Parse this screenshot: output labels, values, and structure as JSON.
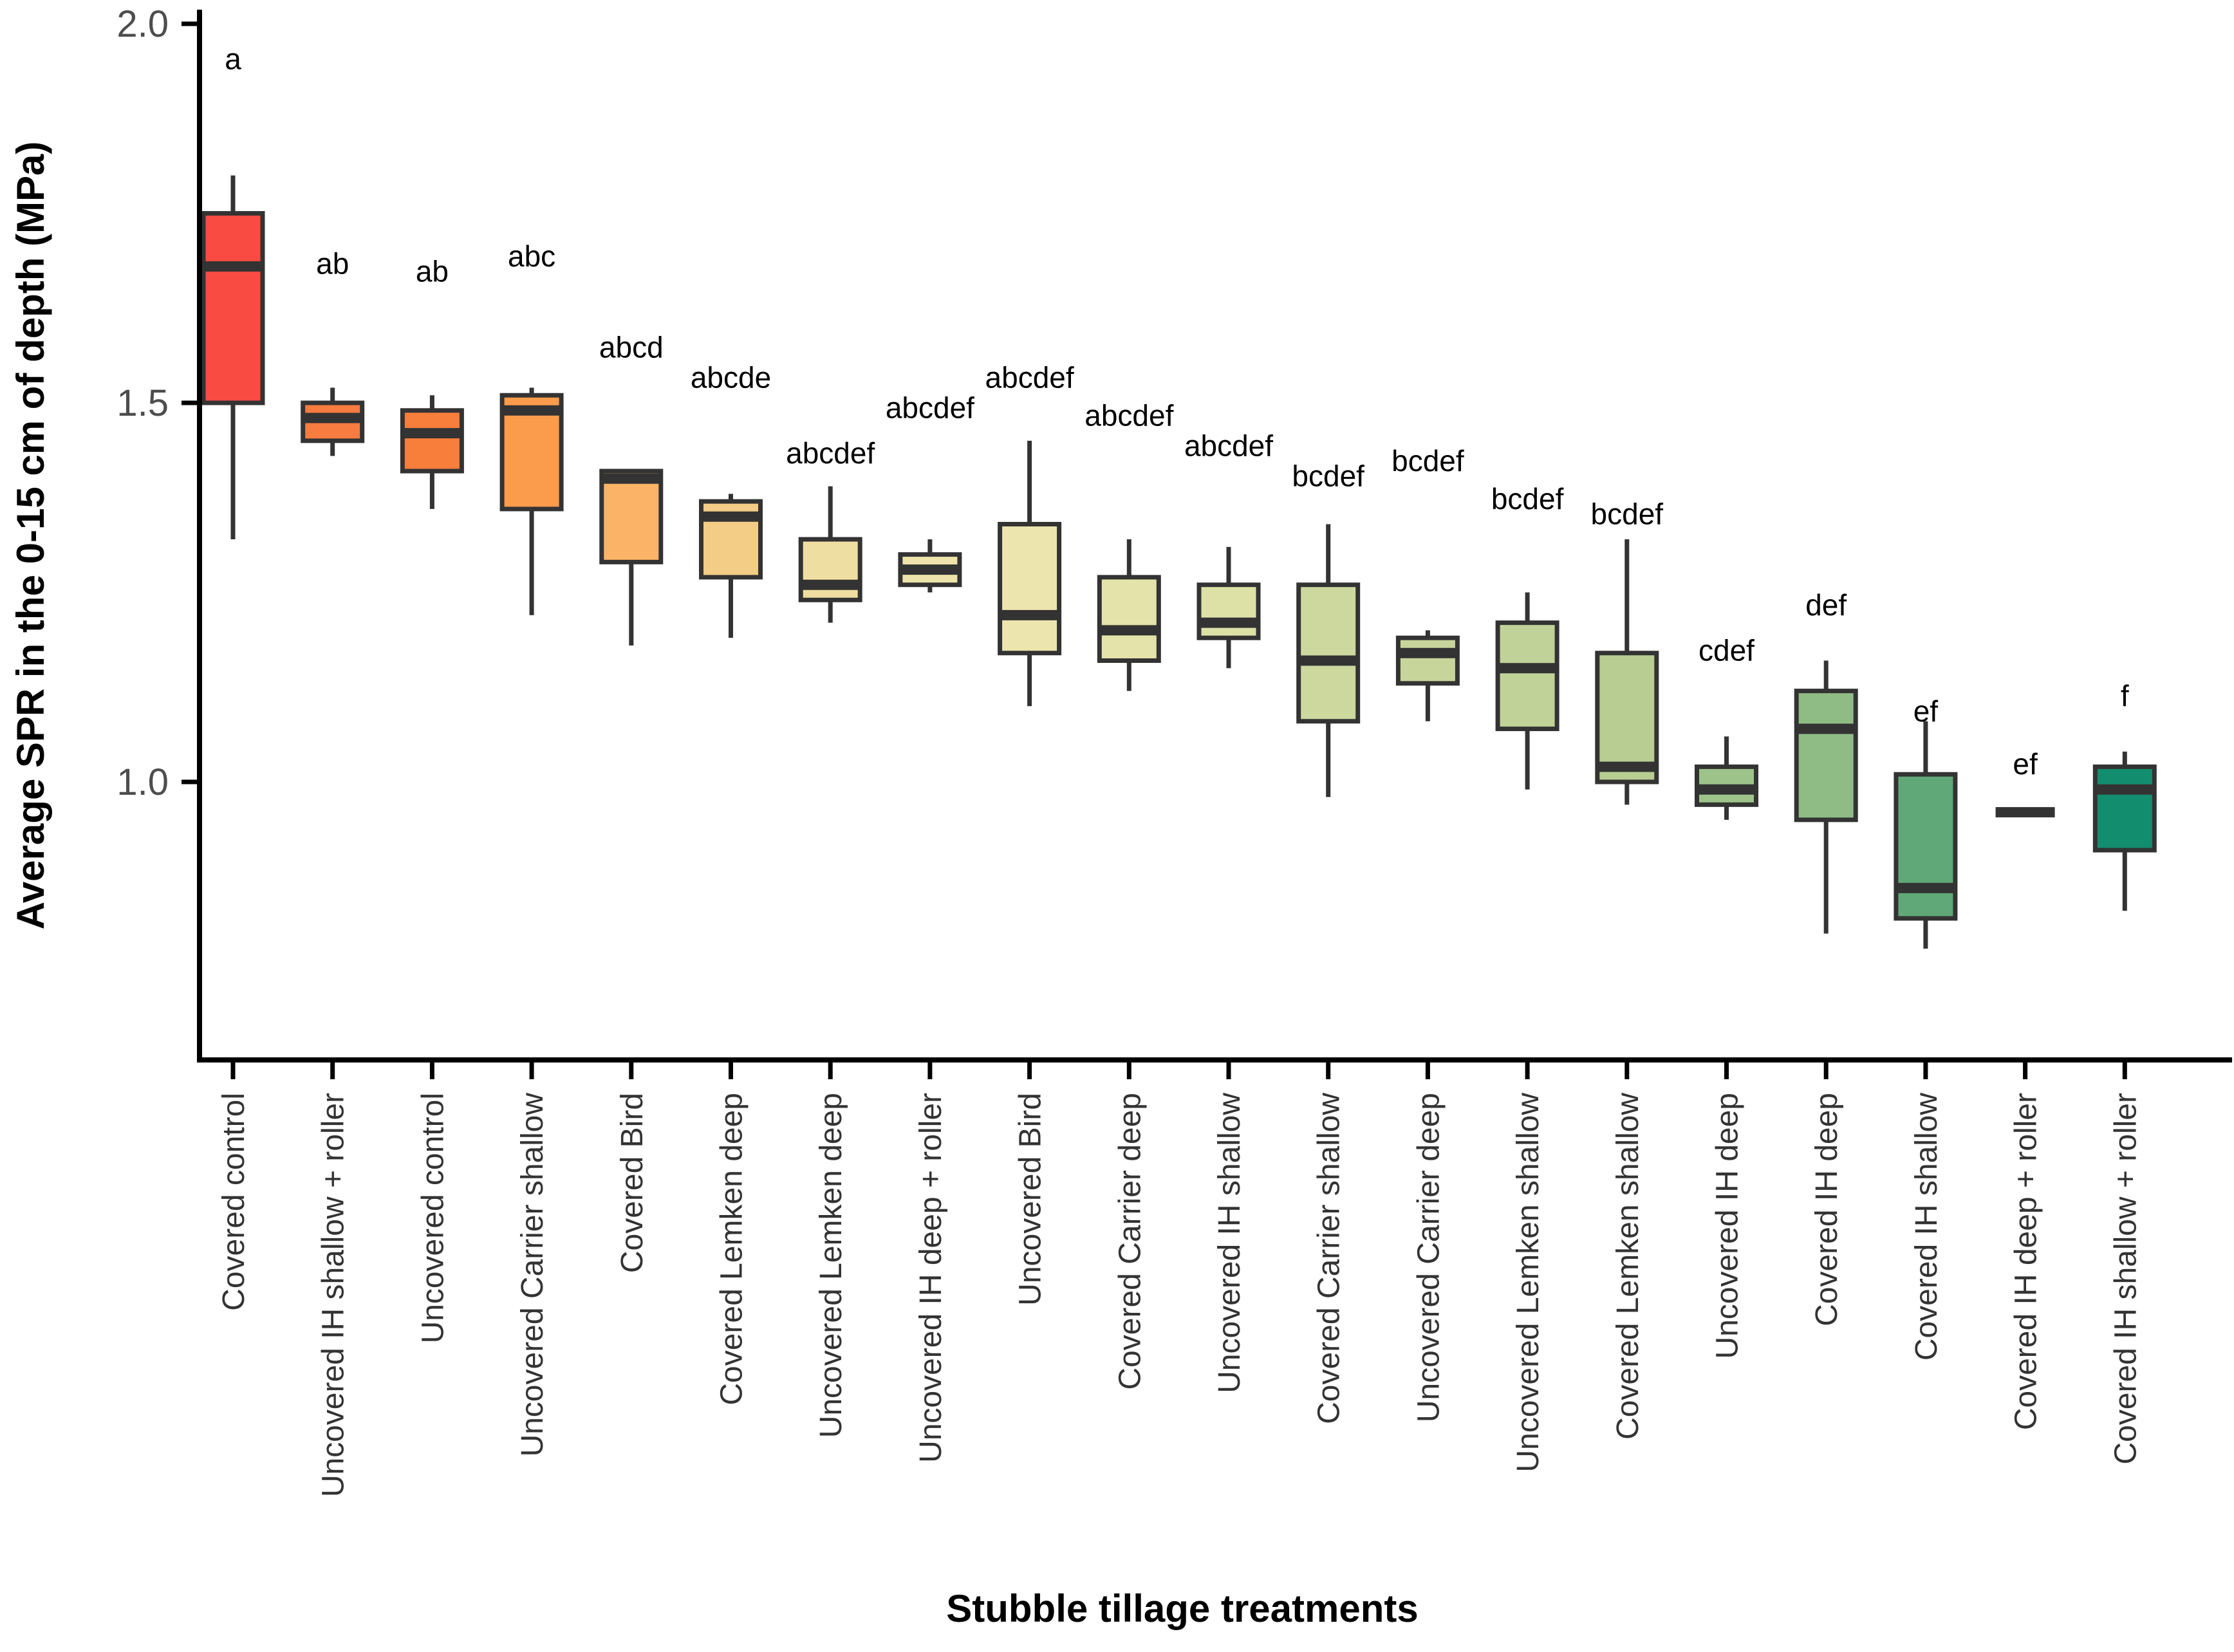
{
  "chart_data": {
    "type": "boxplot",
    "title": "",
    "xlabel": "Stubble tillage treatments",
    "ylabel": "Average SPR in the 0-15 cm of depth (MPa)",
    "y_ticks": [
      2.0,
      1.5,
      1.0
    ],
    "y_tick_labels": [
      "2.0",
      "1.5",
      "1.0"
    ],
    "ylim": [
      0.63,
      2.03
    ],
    "grid": false,
    "legend": false,
    "categories": [
      "Covered control",
      "Uncovered IH shallow + roller",
      "Uncovered control",
      "Uncovered Carrier shallow",
      "Covered Bird",
      "Covered Lemken deep",
      "Uncovered Lemken deep",
      "Uncovered IH deep + roller",
      "Uncovered Bird",
      "Covered Carrier deep",
      "Uncovered IH shallow",
      "Covered Carrier shallow",
      "Uncovered Carrier deep",
      "Uncovered Lemken shallow",
      "Covered Lemken shallow",
      "Uncovered IH deep",
      "Covered IH deep",
      "Covered IH shallow",
      "Covered IH deep + roller",
      "Covered IH shallow + roller"
    ],
    "series": [
      {
        "name": "Covered control",
        "letter": "a",
        "letter_value": 1.94,
        "min": 1.32,
        "q1": 1.5,
        "median": 1.68,
        "q3": 1.75,
        "max": 1.8,
        "color": "#FA4B42"
      },
      {
        "name": "Uncovered IH shallow + roller",
        "letter": "ab",
        "letter_value": 1.67,
        "min": 1.43,
        "q1": 1.45,
        "median": 1.48,
        "q3": 1.5,
        "max": 1.52,
        "color": "#F87B40"
      },
      {
        "name": "Uncovered control",
        "letter": "ab",
        "letter_value": 1.66,
        "min": 1.36,
        "q1": 1.41,
        "median": 1.46,
        "q3": 1.49,
        "max": 1.51,
        "color": "#F87E3C"
      },
      {
        "name": "Uncovered Carrier shallow",
        "letter": "abc",
        "letter_value": 1.68,
        "min": 1.22,
        "q1": 1.36,
        "median": 1.49,
        "q3": 1.51,
        "max": 1.52,
        "color": "#FA9C4C"
      },
      {
        "name": "Covered Bird",
        "letter": "abcd",
        "letter_value": 1.56,
        "min": 1.18,
        "q1": 1.29,
        "median": 1.4,
        "q3": 1.41,
        "max": 1.41,
        "color": "#FBB467"
      },
      {
        "name": "Covered Lemken deep",
        "letter": "abcde",
        "letter_value": 1.52,
        "min": 1.19,
        "q1": 1.27,
        "median": 1.35,
        "q3": 1.37,
        "max": 1.38,
        "color": "#F3CD86"
      },
      {
        "name": "Uncovered Lemken deep",
        "letter": "abcdef",
        "letter_value": 1.42,
        "min": 1.21,
        "q1": 1.24,
        "median": 1.26,
        "q3": 1.32,
        "max": 1.39,
        "color": "#EFDEA1"
      },
      {
        "name": "Uncovered IH deep + roller",
        "letter": "abcdef",
        "letter_value": 1.48,
        "min": 1.25,
        "q1": 1.26,
        "median": 1.28,
        "q3": 1.3,
        "max": 1.32,
        "color": "#EEE3AA"
      },
      {
        "name": "Uncovered Bird",
        "letter": "abcdef",
        "letter_value": 1.52,
        "min": 1.1,
        "q1": 1.17,
        "median": 1.22,
        "q3": 1.34,
        "max": 1.45,
        "color": "#EDE5AE"
      },
      {
        "name": "Covered Carrier deep",
        "letter": "abcdef",
        "letter_value": 1.47,
        "min": 1.12,
        "q1": 1.16,
        "median": 1.2,
        "q3": 1.27,
        "max": 1.32,
        "color": "#E4E3AA"
      },
      {
        "name": "Uncovered IH shallow",
        "letter": "abcdef",
        "letter_value": 1.43,
        "min": 1.15,
        "q1": 1.19,
        "median": 1.21,
        "q3": 1.26,
        "max": 1.31,
        "color": "#DEE1A6"
      },
      {
        "name": "Covered Carrier shallow",
        "letter": "bcdef",
        "letter_value": 1.39,
        "min": 0.98,
        "q1": 1.08,
        "median": 1.16,
        "q3": 1.26,
        "max": 1.34,
        "color": "#CDD89E"
      },
      {
        "name": "Uncovered Carrier deep",
        "letter": "bcdef",
        "letter_value": 1.41,
        "min": 1.08,
        "q1": 1.13,
        "median": 1.17,
        "q3": 1.19,
        "max": 1.2,
        "color": "#C7D59B"
      },
      {
        "name": "Uncovered Lemken shallow",
        "letter": "bcdef",
        "letter_value": 1.36,
        "min": 0.99,
        "q1": 1.07,
        "median": 1.15,
        "q3": 1.21,
        "max": 1.25,
        "color": "#C0D297"
      },
      {
        "name": "Covered Lemken shallow",
        "letter": "bcdef",
        "letter_value": 1.34,
        "min": 0.97,
        "q1": 1.0,
        "median": 1.02,
        "q3": 1.17,
        "max": 1.32,
        "color": "#B7CD92"
      },
      {
        "name": "Uncovered IH deep",
        "letter": "cdef",
        "letter_value": 1.16,
        "min": 0.95,
        "q1": 0.97,
        "median": 0.99,
        "q3": 1.02,
        "max": 1.06,
        "color": "#9DC38A"
      },
      {
        "name": "Covered IH deep",
        "letter": "def",
        "letter_value": 1.22,
        "min": 0.8,
        "q1": 0.95,
        "median": 1.07,
        "q3": 1.12,
        "max": 1.16,
        "color": "#8FBC85"
      },
      {
        "name": "Covered IH shallow",
        "letter": "ef",
        "letter_value": 1.08,
        "min": 0.78,
        "q1": 0.82,
        "median": 0.86,
        "q3": 1.01,
        "max": 1.08,
        "color": "#60A877"
      },
      {
        "name": "Covered IH deep + roller",
        "letter": "ef",
        "letter_value": 1.01,
        "min": 0.96,
        "q1": 0.96,
        "median": 0.96,
        "q3": 0.96,
        "max": 0.96,
        "color": "#3F9B72"
      },
      {
        "name": "Covered IH shallow + roller",
        "letter": "f",
        "letter_value": 1.1,
        "min": 0.83,
        "q1": 0.91,
        "median": 0.99,
        "q3": 1.02,
        "max": 1.04,
        "color": "#128D6E"
      }
    ]
  },
  "layout_text": {
    "x_axis_title": "Stubble tillage treatments",
    "y_axis_title": "Average SPR in the 0-15 cm of depth (MPa)"
  },
  "colors": {
    "box_stroke": "#333333",
    "median": "#333333",
    "whisker": "#333333",
    "axis_line": "#000000",
    "tick_label": "#4d4d4d",
    "category_label": "#333333",
    "letter": "#000000",
    "background": "#ffffff"
  }
}
